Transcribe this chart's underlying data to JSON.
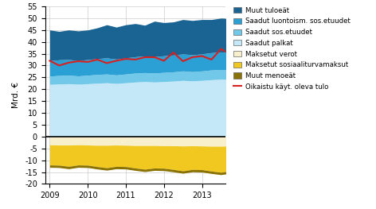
{
  "ylabel": "Mrd. €",
  "xlim": [
    2008.88,
    2013.62
  ],
  "ylim": [
    -20,
    55
  ],
  "yticks": [
    -20,
    -15,
    -10,
    -5,
    0,
    5,
    10,
    15,
    20,
    25,
    30,
    35,
    40,
    45,
    50,
    55
  ],
  "xticks": [
    2009,
    2010,
    2011,
    2012,
    2013
  ],
  "colors": {
    "muut_tulot": "#1a6494",
    "luontois": "#2ba0d4",
    "sos_etuudet": "#72c8e8",
    "palkat": "#c4e8f8",
    "maksetut_verot": "#f8f0cc",
    "sosiaaliturvamaksut": "#f0c820",
    "muut_menot": "#8a7200",
    "red_line": "#d82020"
  },
  "legend_labels": [
    "Muut tuloeät",
    "Saadut luontoism. sos.etuudet",
    "Saadut sos.etuudet",
    "Saadut palkat",
    "Maksetut verot",
    "Maksetut sosiaaliturvamaksut",
    "Muut menoeät",
    "Oikaistu käyt. oleva tulo"
  ],
  "n_quarters": 20,
  "x_start": 2009.0,
  "x_step": 0.25,
  "palkat": [
    22.0,
    22.2,
    22.3,
    22.1,
    22.3,
    22.5,
    22.7,
    22.4,
    22.7,
    23.0,
    23.2,
    23.0,
    23.2,
    23.4,
    23.7,
    23.5,
    23.7,
    24.0,
    24.2,
    24.0
  ],
  "sos_etuudet": [
    3.5,
    3.6,
    3.6,
    3.5,
    3.6,
    3.7,
    3.7,
    3.6,
    3.7,
    3.8,
    3.8,
    3.8,
    3.9,
    3.9,
    4.0,
    3.9,
    4.0,
    4.1,
    4.1,
    4.0
  ],
  "luontois": [
    6.5,
    6.6,
    6.6,
    6.5,
    6.6,
    6.7,
    6.8,
    6.7,
    6.8,
    6.9,
    7.0,
    6.9,
    7.0,
    7.1,
    7.2,
    7.1,
    7.2,
    7.3,
    7.4,
    7.3
  ],
  "muut_tulot": [
    13.0,
    12.0,
    12.5,
    12.5,
    12.5,
    13.0,
    14.0,
    13.5,
    14.0,
    14.0,
    13.0,
    15.0,
    14.0,
    14.0,
    14.5,
    14.5,
    14.5,
    14.0,
    14.3,
    14.5
  ],
  "maksetut_verot": [
    -3.5,
    -3.6,
    -3.6,
    -3.5,
    -3.6,
    -3.7,
    -3.7,
    -3.6,
    -3.7,
    -3.8,
    -3.8,
    -3.8,
    -3.9,
    -3.9,
    -4.0,
    -3.9,
    -4.0,
    -4.1,
    -4.1,
    -4.0
  ],
  "sosiaaliturvamaksut": [
    -8.5,
    -8.5,
    -9.0,
    -8.5,
    -8.5,
    -9.0,
    -9.5,
    -9.0,
    -9.0,
    -9.5,
    -10.0,
    -9.5,
    -9.5,
    -10.0,
    -10.5,
    -10.0,
    -10.0,
    -10.5,
    -11.0,
    -10.5
  ],
  "muut_menot": [
    -1.0,
    -1.0,
    -1.0,
    -1.0,
    -1.0,
    -1.0,
    -1.0,
    -1.0,
    -1.0,
    -1.0,
    -1.0,
    -1.0,
    -1.0,
    -1.0,
    -1.0,
    -1.0,
    -1.0,
    -1.0,
    -1.0,
    -1.0
  ],
  "red_line": [
    32.0,
    30.0,
    31.2,
    31.8,
    31.5,
    32.5,
    31.0,
    32.0,
    32.8,
    32.5,
    33.5,
    33.5,
    32.0,
    35.5,
    31.8,
    33.5,
    34.0,
    32.5,
    37.0,
    34.5
  ]
}
